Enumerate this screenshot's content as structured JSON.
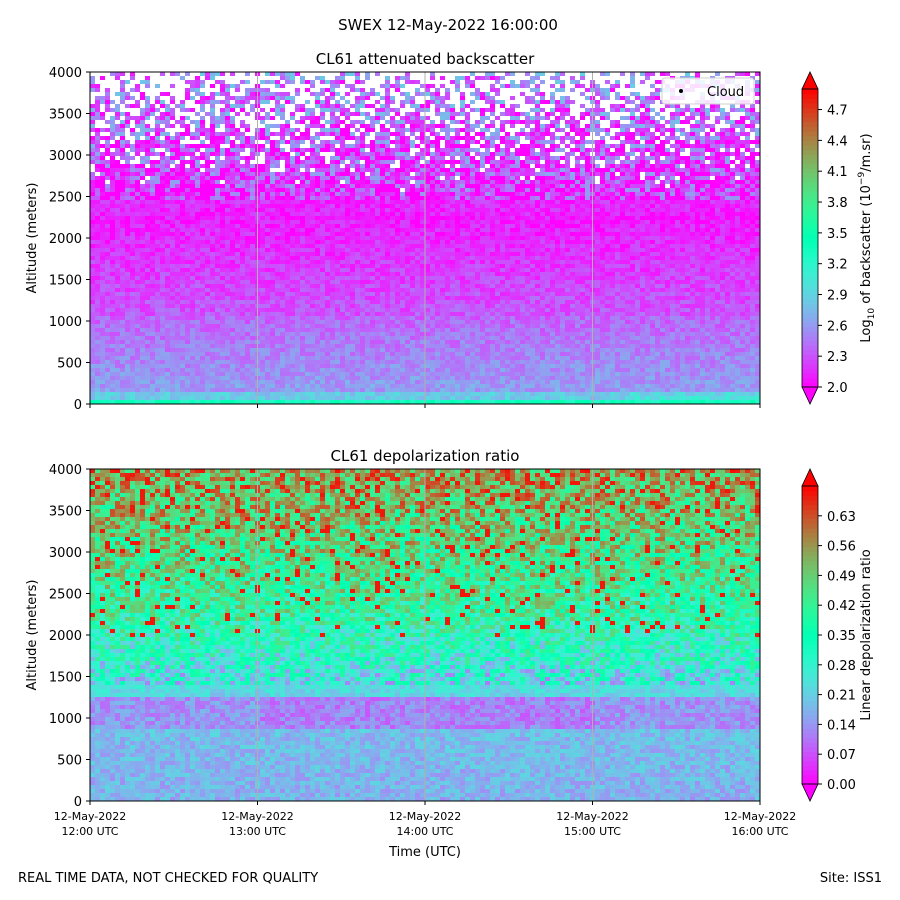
{
  "suptitle": "SWEX 12-May-2022 16:00:00",
  "footer_left": "REAL TIME DATA, NOT CHECKED FOR QUALITY",
  "footer_right": "Site: ISS1",
  "chart_data": [
    {
      "type": "heatmap",
      "title": "CL61 attenuated backscatter",
      "ylabel": "Altitude (meters)",
      "xlabel": "",
      "ylim": [
        0,
        4000
      ],
      "yticks": [
        0,
        500,
        1000,
        1500,
        2000,
        2500,
        3000,
        3500,
        4000
      ],
      "xticks": [
        {
          "line1": "12-May-2022",
          "line2": "12:00 UTC"
        },
        {
          "line1": "12-May-2022",
          "line2": "13:00 UTC"
        },
        {
          "line1": "12-May-2022",
          "line2": "14:00 UTC"
        },
        {
          "line1": "12-May-2022",
          "line2": "15:00 UTC"
        },
        {
          "line1": "12-May-2022",
          "line2": "16:00 UTC"
        }
      ],
      "show_xtick_labels": false,
      "legend": {
        "entries": [
          "Cloud"
        ],
        "placement": "top-right"
      },
      "colorbar": {
        "label_prefix": "Log",
        "label_sub": "10",
        "label_mid": " of backscatter (10",
        "label_sup": "−9",
        "label_suffix": "/m.sr)",
        "vmin": 2.0,
        "vmax": 4.9,
        "ticks": [
          "2.0",
          "2.3",
          "2.6",
          "2.9",
          "3.2",
          "3.5",
          "3.8",
          "4.1",
          "4.4",
          "4.7"
        ],
        "extend": "both",
        "colormap": "rainbow"
      },
      "field": "backscatter"
    },
    {
      "type": "heatmap",
      "title": "CL61 depolarization ratio",
      "ylabel": "Altitude (meters)",
      "xlabel": "Time (UTC)",
      "ylim": [
        0,
        4000
      ],
      "yticks": [
        0,
        500,
        1000,
        1500,
        2000,
        2500,
        3000,
        3500,
        4000
      ],
      "xticks": [
        {
          "line1": "12-May-2022",
          "line2": "12:00 UTC"
        },
        {
          "line1": "12-May-2022",
          "line2": "13:00 UTC"
        },
        {
          "line1": "12-May-2022",
          "line2": "14:00 UTC"
        },
        {
          "line1": "12-May-2022",
          "line2": "15:00 UTC"
        },
        {
          "line1": "12-May-2022",
          "line2": "16:00 UTC"
        }
      ],
      "show_xtick_labels": true,
      "colorbar": {
        "label": "Linear depolarization ratio",
        "vmin": 0.0,
        "vmax": 0.7,
        "ticks": [
          "0.00",
          "0.07",
          "0.14",
          "0.21",
          "0.28",
          "0.35",
          "0.42",
          "0.49",
          "0.56",
          "0.63"
        ],
        "extend": "both",
        "colormap": "rainbow"
      },
      "field": "depolarization"
    }
  ]
}
